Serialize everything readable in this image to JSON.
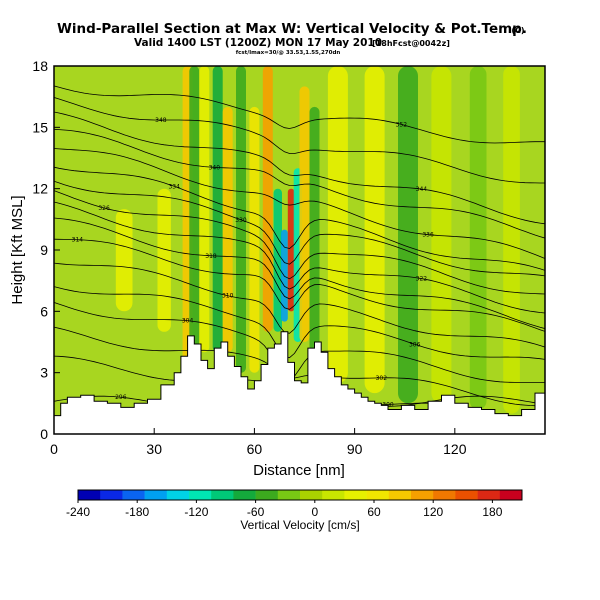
{
  "chart_data": {
    "type": "contour",
    "title": "Wind-Parallel Section at Max W: Vertical Velocity & Pot.Temp.",
    "title_mark": "(C)",
    "subtitle": "Valid 1400 LST (1200Z) MON 17 May 2010",
    "subtitle_tag": "[18hFcst@0042z]",
    "subtitle2": "fcst/lmax=30/@ 33.53,1.55,270dn",
    "xlabel": "Distance [nm]",
    "ylabel": "Height [Kft MSL]",
    "xlim": [
      0,
      147
    ],
    "ylim": [
      0,
      18
    ],
    "x_ticks": [
      "0",
      "30",
      "60",
      "90",
      "120"
    ],
    "y_ticks": [
      "0",
      "3",
      "6",
      "9",
      "12",
      "15",
      "18"
    ],
    "colorbar": {
      "label": "Vertical Velocity [cm/s]",
      "ticks": [
        "-240",
        "-180",
        "-120",
        "-60",
        "0",
        "60",
        "120",
        "180"
      ],
      "range": [
        -240,
        210
      ],
      "colors": [
        "#0000b4",
        "#0a28e6",
        "#0a64f0",
        "#00a0f0",
        "#00d2e6",
        "#00e6b4",
        "#00c878",
        "#14aa3c",
        "#3caa1e",
        "#78c814",
        "#aad200",
        "#c8e600",
        "#e6f000",
        "#f0e600",
        "#f5c800",
        "#f5a000",
        "#f07800",
        "#eb5000",
        "#dc2814",
        "#c8001e"
      ]
    },
    "terrain_profile": {
      "x": [
        0,
        2,
        4,
        8,
        12,
        16,
        20,
        24,
        28,
        32,
        36,
        38,
        40,
        42,
        44,
        46,
        48,
        50,
        52,
        54,
        56,
        58,
        60,
        62,
        64,
        66,
        68,
        70,
        72,
        74,
        76,
        78,
        80,
        82,
        84,
        86,
        88,
        90,
        92,
        94,
        96,
        98,
        100,
        104,
        108,
        112,
        116,
        120,
        124,
        128,
        132,
        136,
        140,
        144,
        147
      ],
      "z": [
        0.9,
        1.5,
        1.8,
        1.9,
        1.6,
        1.5,
        1.3,
        1.5,
        1.7,
        2.4,
        3.0,
        3.8,
        4.8,
        4.4,
        3.6,
        3.2,
        4.2,
        4.5,
        3.8,
        3.3,
        2.8,
        2.2,
        2.6,
        3.4,
        4.2,
        4.4,
        5.0,
        3.5,
        2.6,
        2.5,
        4.2,
        4.5,
        4.0,
        3.2,
        2.8,
        2.4,
        2.2,
        2.0,
        1.8,
        1.6,
        1.5,
        1.4,
        1.2,
        1.4,
        1.2,
        1.6,
        1.9,
        1.5,
        1.3,
        1.2,
        1.0,
        0.9,
        1.2,
        2.0,
        0.6
      ]
    },
    "vertical_velocity_bands": [
      {
        "x": 21,
        "z0": 6,
        "z1": 11,
        "w": 30,
        "width": 5
      },
      {
        "x": 33,
        "z0": 5,
        "z1": 12,
        "w": 40,
        "width": 4
      },
      {
        "x": 40,
        "z0": 3.5,
        "z1": 18,
        "w": 90,
        "width": 3
      },
      {
        "x": 42,
        "z0": 3.5,
        "z1": 18,
        "w": -50,
        "width": 3
      },
      {
        "x": 45,
        "z0": 4,
        "z1": 18,
        "w": 50,
        "width": 3
      },
      {
        "x": 49,
        "z0": 4,
        "z1": 18,
        "w": -70,
        "width": 3
      },
      {
        "x": 52,
        "z0": 4,
        "z1": 16,
        "w": 90,
        "width": 3
      },
      {
        "x": 56,
        "z0": 3,
        "z1": 18,
        "w": -60,
        "width": 3
      },
      {
        "x": 60,
        "z0": 3,
        "z1": 16,
        "w": 60,
        "width": 3
      },
      {
        "x": 64,
        "z0": 5,
        "z1": 18,
        "w": 110,
        "width": 3
      },
      {
        "x": 67,
        "z0": 5,
        "z1": 12,
        "w": -90,
        "width": 2.5
      },
      {
        "x": 69,
        "z0": 5.5,
        "z1": 10,
        "w": -170,
        "width": 2
      },
      {
        "x": 71,
        "z0": 6,
        "z1": 12,
        "w": 170,
        "width": 2
      },
      {
        "x": 73,
        "z0": 4.5,
        "z1": 13,
        "w": -110,
        "width": 2.5
      },
      {
        "x": 75,
        "z0": 4.5,
        "z1": 17,
        "w": 90,
        "width": 3
      },
      {
        "x": 78,
        "z0": 4,
        "z1": 16,
        "w": -50,
        "width": 3
      },
      {
        "x": 85,
        "z0": 2.5,
        "z1": 18,
        "w": 40,
        "width": 6
      },
      {
        "x": 96,
        "z0": 2,
        "z1": 18,
        "w": 30,
        "width": 6
      },
      {
        "x": 106,
        "z0": 1.5,
        "z1": 18,
        "w": -40,
        "width": 6
      },
      {
        "x": 116,
        "z0": 1.5,
        "z1": 18,
        "w": 25,
        "width": 6
      },
      {
        "x": 127,
        "z0": 1.2,
        "z1": 18,
        "w": -35,
        "width": 5
      },
      {
        "x": 137,
        "z0": 1.0,
        "z1": 18,
        "w": 25,
        "width": 5
      }
    ],
    "isentropes": [
      {
        "label": "296",
        "base": 1.6,
        "shift": 0,
        "label_x": 20
      },
      {
        "label": "300",
        "base": 3.6,
        "shift": 3,
        "label_x": 100
      },
      {
        "label": "302",
        "base": 5.0,
        "shift": 3.5,
        "label_x": 98
      },
      {
        "label": "304",
        "base": 6.4,
        "shift": 4,
        "label_x": 40
      },
      {
        "label": "306",
        "base": 7.4,
        "shift": 4,
        "label_x": 108
      },
      {
        "label": "310",
        "base": 8.6,
        "shift": 4.5,
        "label_x": 52
      },
      {
        "label": "314",
        "base": 9.6,
        "shift": 4.5,
        "label_x": 7
      },
      {
        "label": "318",
        "base": 10.4,
        "shift": 5,
        "label_x": 47
      },
      {
        "label": "322",
        "base": 11.1,
        "shift": 5,
        "label_x": 110
      },
      {
        "label": "326",
        "base": 11.8,
        "shift": 5,
        "label_x": 15
      },
      {
        "label": "330",
        "base": 12.5,
        "shift": 5,
        "label_x": 56
      },
      {
        "label": "334",
        "base": 13.3,
        "shift": 5.5,
        "label_x": 36
      },
      {
        "label": "336",
        "base": 14.1,
        "shift": 5.5,
        "label_x": 112
      },
      {
        "label": "340",
        "base": 14.8,
        "shift": 5,
        "label_x": 48
      },
      {
        "label": "344",
        "base": 15.5,
        "shift": 5,
        "label_x": 110
      },
      {
        "label": "348",
        "base": 16.3,
        "shift": 4,
        "label_x": 32
      },
      {
        "label": "352",
        "base": 17.1,
        "shift": 3,
        "label_x": 104
      }
    ]
  }
}
